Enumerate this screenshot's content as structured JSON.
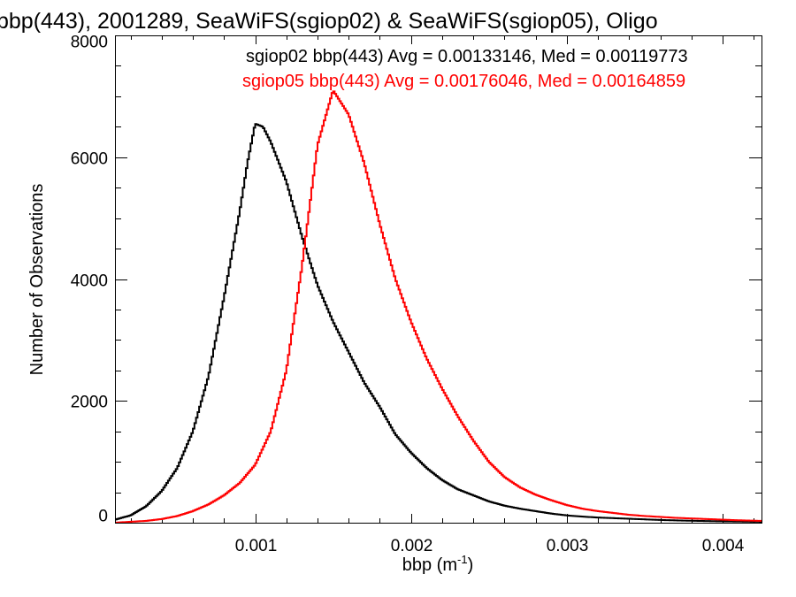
{
  "chart_data": {
    "type": "line",
    "title": "bbp(443), 2001289, SeaWiFS(sgiop02) & SeaWiFS(sgiop05), Oligo",
    "xlabel": "bbp (m",
    "xlabel_sup": "-1",
    "xlabel_close": ")",
    "ylabel": "Number of Observations",
    "xlim": [
      0.0001,
      0.00425
    ],
    "ylim": [
      0,
      8000
    ],
    "x_ticks": [
      0.001,
      0.002,
      0.003,
      0.004
    ],
    "x_tick_labels": [
      "0.001",
      "0.002",
      "0.003",
      "0.004"
    ],
    "y_ticks": [
      0,
      2000,
      4000,
      6000,
      8000
    ],
    "y_tick_labels": [
      "0",
      "2000",
      "4000",
      "6000",
      "8000"
    ],
    "grid": false,
    "series": [
      {
        "name": "sgiop02",
        "color": "#000000",
        "annotation": "sgiop02 bbp(443) Avg = 0.00133146, Med = 0.00119773",
        "points": [
          [
            0.0001,
            50
          ],
          [
            0.0002,
            120
          ],
          [
            0.0003,
            270
          ],
          [
            0.0004,
            520
          ],
          [
            0.0005,
            900
          ],
          [
            0.0006,
            1500
          ],
          [
            0.0007,
            2400
          ],
          [
            0.0008,
            3700
          ],
          [
            0.0009,
            5100
          ],
          [
            0.00095,
            5900
          ],
          [
            0.001,
            6550
          ],
          [
            0.00105,
            6500
          ],
          [
            0.0011,
            6250
          ],
          [
            0.0012,
            5600
          ],
          [
            0.0013,
            4700
          ],
          [
            0.0014,
            3900
          ],
          [
            0.0015,
            3300
          ],
          [
            0.0016,
            2800
          ],
          [
            0.0017,
            2300
          ],
          [
            0.0018,
            1900
          ],
          [
            0.0019,
            1450
          ],
          [
            0.002,
            1150
          ],
          [
            0.0021,
            900
          ],
          [
            0.0022,
            700
          ],
          [
            0.0023,
            550
          ],
          [
            0.0024,
            450
          ],
          [
            0.0025,
            350
          ],
          [
            0.0026,
            280
          ],
          [
            0.0027,
            230
          ],
          [
            0.0028,
            190
          ],
          [
            0.0029,
            150
          ],
          [
            0.003,
            120
          ],
          [
            0.0031,
            100
          ],
          [
            0.0032,
            85
          ],
          [
            0.0033,
            75
          ],
          [
            0.0034,
            65
          ],
          [
            0.0035,
            55
          ],
          [
            0.0036,
            45
          ],
          [
            0.0037,
            38
          ],
          [
            0.0038,
            32
          ],
          [
            0.0039,
            27
          ],
          [
            0.004,
            23
          ],
          [
            0.0041,
            20
          ],
          [
            0.00425,
            15
          ]
        ]
      },
      {
        "name": "sgiop05",
        "color": "#ff0000",
        "annotation": "sgiop05 bbp(443) Avg = 0.00176046, Med = 0.00164859",
        "points": [
          [
            0.0001,
            0
          ],
          [
            0.0002,
            15
          ],
          [
            0.0003,
            30
          ],
          [
            0.0004,
            60
          ],
          [
            0.0005,
            110
          ],
          [
            0.0006,
            190
          ],
          [
            0.0007,
            300
          ],
          [
            0.0008,
            450
          ],
          [
            0.0009,
            650
          ],
          [
            0.001,
            950
          ],
          [
            0.0011,
            1500
          ],
          [
            0.0012,
            2500
          ],
          [
            0.0013,
            4200
          ],
          [
            0.0014,
            6200
          ],
          [
            0.0015,
            7100
          ],
          [
            0.0016,
            6700
          ],
          [
            0.0017,
            5900
          ],
          [
            0.0018,
            4900
          ],
          [
            0.0019,
            4000
          ],
          [
            0.002,
            3300
          ],
          [
            0.0021,
            2700
          ],
          [
            0.0022,
            2200
          ],
          [
            0.0023,
            1750
          ],
          [
            0.0024,
            1350
          ],
          [
            0.0025,
            1000
          ],
          [
            0.0026,
            750
          ],
          [
            0.0027,
            580
          ],
          [
            0.0028,
            460
          ],
          [
            0.0029,
            370
          ],
          [
            0.003,
            290
          ],
          [
            0.0031,
            230
          ],
          [
            0.0032,
            190
          ],
          [
            0.0033,
            160
          ],
          [
            0.0034,
            130
          ],
          [
            0.0035,
            110
          ],
          [
            0.0036,
            95
          ],
          [
            0.0037,
            80
          ],
          [
            0.0038,
            70
          ],
          [
            0.0039,
            60
          ],
          [
            0.004,
            50
          ],
          [
            0.0041,
            40
          ],
          [
            0.00425,
            30
          ]
        ]
      }
    ]
  }
}
